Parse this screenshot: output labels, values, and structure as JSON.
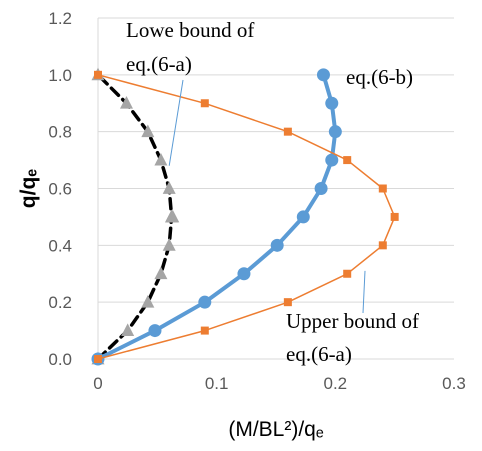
{
  "chart_data": {
    "type": "scatter",
    "title": "",
    "xlabel": "(M/BL²)/qₑ",
    "ylabel": "q/qₑ",
    "xlim": [
      0,
      0.3
    ],
    "ylim": [
      0,
      1.2
    ],
    "xticks": [
      "0",
      "0.1",
      "0.2",
      "0.3"
    ],
    "yticks": [
      "0.0",
      "0.2",
      "0.4",
      "0.6",
      "0.8",
      "1.0",
      "1.2"
    ],
    "grid": "horizontal",
    "legend": "none",
    "series": [
      {
        "style": "dashed-triangle",
        "color": "#000000",
        "marker_color": "#a5a5a5",
        "x": [
          0.0,
          0.025,
          0.042,
          0.053,
          0.06,
          0.062,
          0.063,
          0.062,
          0.06,
          0.053,
          0.042,
          0.024,
          0.0
        ],
        "y": [
          0.0,
          0.1,
          0.2,
          0.3,
          0.4,
          0.5,
          0.5,
          0.5,
          0.6,
          0.7,
          0.8,
          0.9,
          1.0
        ]
      },
      {
        "style": "solid-circle",
        "color": "#5b9bd5",
        "x": [
          0.0,
          0.048,
          0.09,
          0.123,
          0.151,
          0.173,
          0.188,
          0.197,
          0.2,
          0.197,
          0.19
        ],
        "y": [
          0.0,
          0.1,
          0.2,
          0.3,
          0.4,
          0.5,
          0.6,
          0.7,
          0.8,
          0.9,
          1.0
        ]
      },
      {
        "style": "solid-square",
        "color": "#ed7d31",
        "x": [
          0.0,
          0.09,
          0.16,
          0.21,
          0.24,
          0.25,
          0.24,
          0.21,
          0.16,
          0.09,
          0.0
        ],
        "y": [
          0.0,
          0.1,
          0.2,
          0.3,
          0.4,
          0.5,
          0.6,
          0.7,
          0.8,
          0.9,
          1.0
        ]
      }
    ],
    "annotations": [
      {
        "lines": [
          "Lowe bound of",
          "eq.(6-a)"
        ],
        "points_to": [
          0.06,
          0.68
        ]
      },
      {
        "lines": [
          "eq.(6-b)"
        ],
        "points_to": null
      },
      {
        "lines": [
          "Upper bound of",
          "eq.(6-a)"
        ],
        "points_to": [
          0.225,
          0.31
        ]
      }
    ]
  }
}
